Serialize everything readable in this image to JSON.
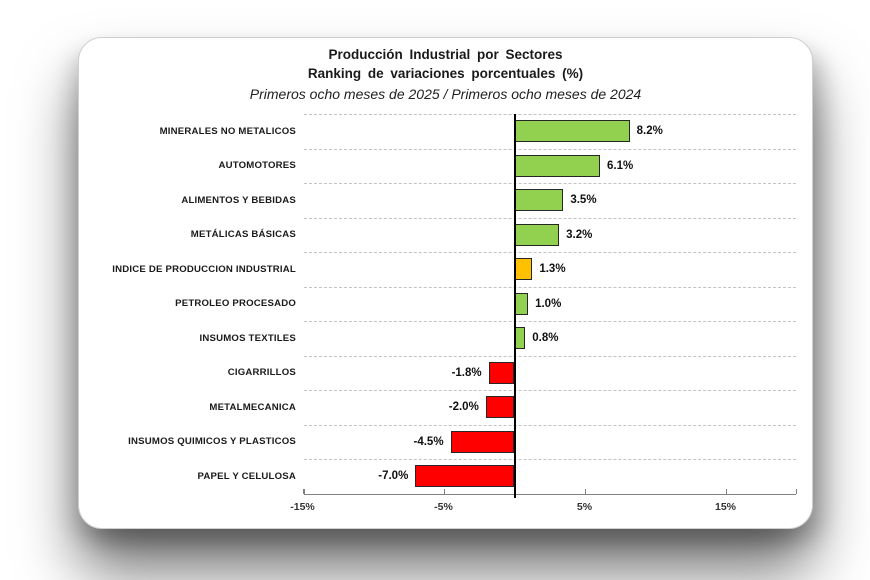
{
  "page": {
    "background": "#ffffff",
    "card_background": "#ffffff"
  },
  "chart_data": {
    "type": "bar",
    "orientation": "horizontal",
    "title_line1": "Producción Industrial por Sectores",
    "title_line2": "Ranking de variaciones porcentuales (%)",
    "subtitle": "Primeros ocho meses de 2025 / Primeros ocho meses de 2024",
    "categories": [
      "MINERALES NO METALICOS",
      "AUTOMOTORES",
      "ALIMENTOS Y BEBIDAS",
      "METÁLICAS BÁSICAS",
      "INDICE DE PRODUCCION INDUSTRIAL",
      "PETROLEO PROCESADO",
      "INSUMOS TEXTILES",
      "CIGARRILLOS",
      "METALMECANICA",
      "INSUMOS QUIMICOS Y PLASTICOS",
      "PAPEL Y CELULOSA"
    ],
    "values": [
      8.2,
      6.1,
      3.5,
      3.2,
      1.3,
      1.0,
      0.8,
      -1.8,
      -2.0,
      -4.5,
      -7.0
    ],
    "value_labels": [
      "8.2%",
      "6.1%",
      "3.5%",
      "3.2%",
      "1.3%",
      "1.0%",
      "0.8%",
      "-1.8%",
      "-2.0%",
      "-4.5%",
      "-7.0%"
    ],
    "bar_colors": [
      "#92D050",
      "#92D050",
      "#92D050",
      "#92D050",
      "#FFC000",
      "#92D050",
      "#92D050",
      "#FF0000",
      "#FF0000",
      "#FF0000",
      "#FF0000"
    ],
    "colors": {
      "positive": "#92D050",
      "index_highlight": "#FFC000",
      "negative": "#FF0000",
      "bar_border": "#262626",
      "gridline": "#c3c3c3",
      "axis": "#808080",
      "zero_line": "#000000"
    },
    "x_ticks": [
      {
        "value": -15,
        "label": "-15%"
      },
      {
        "value": -5,
        "label": "-5%"
      },
      {
        "value": 5,
        "label": "5%"
      },
      {
        "value": 15,
        "label": "15%"
      }
    ],
    "xlim": [
      -15,
      20
    ],
    "xlabel": "",
    "ylabel": "",
    "grid": "dashed horizontal row separators",
    "legend": "none"
  }
}
